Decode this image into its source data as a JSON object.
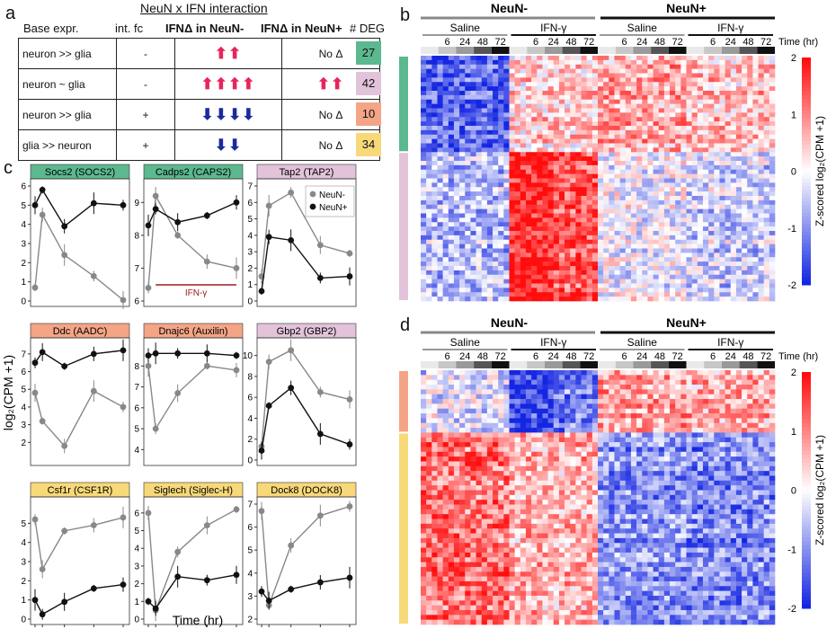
{
  "panels": {
    "a": "a",
    "b": "b",
    "c": "c",
    "d": "d"
  },
  "table": {
    "title": "NeuN x IFN interaction",
    "headers": [
      "Base expr.",
      "int. fc",
      "IFNΔ in NeuN-",
      "IFNΔ in NeuN+",
      "# DEG"
    ],
    "rows": [
      {
        "base": "neuron >> glia",
        "fc": "-",
        "neg_dir": "up",
        "neg_n": 2,
        "pos": "No Δ",
        "pos_dir": "",
        "pos_n": 0,
        "deg": "27",
        "color": "#5cb88f"
      },
      {
        "base": "neuron ~ glia",
        "fc": "-",
        "neg_dir": "up",
        "neg_n": 4,
        "pos": "",
        "pos_dir": "up",
        "pos_n": 2,
        "deg": "42",
        "color": "#e2c3da"
      },
      {
        "base": "neuron >> glia",
        "fc": "+",
        "neg_dir": "down",
        "neg_n": 4,
        "pos": "No Δ",
        "pos_dir": "",
        "pos_n": 0,
        "deg": "10",
        "color": "#f4a586"
      },
      {
        "base": "glia >> neuron",
        "fc": "+",
        "neg_dir": "down",
        "neg_n": 2,
        "pos": "No Δ",
        "pos_dir": "",
        "pos_n": 0,
        "deg": "34",
        "color": "#f7d97a"
      }
    ]
  },
  "heatmap_labels": {
    "neg": "NeuN-",
    "pos": "NeuN+",
    "saline": "Saline",
    "ifn": "IFN-γ",
    "time_ticks": [
      "6",
      "24",
      "48",
      "72"
    ],
    "time_unit": "Time (hr)",
    "cbar_label": "Z-scored log₂(CPM +1)",
    "cbar_ticks": [
      "2",
      "1",
      "0",
      "-1",
      "-2"
    ]
  },
  "c_labels": {
    "ylabel": "log₂(CPM +1)",
    "xlabel": "Time (hr)",
    "legend": [
      "NeuN-",
      "NeuN+"
    ],
    "ifn_bar": "IFN-γ",
    "xticks": [
      "0",
      "6",
      "24",
      "48",
      "72"
    ]
  },
  "colors": {
    "teal": "#5cb88f",
    "pink": "#e2c3da",
    "salmon": "#f4a586",
    "yellow": "#f7d97a",
    "neg": "#888888",
    "pos": "#111111",
    "ifn": "#a11c1c"
  },
  "chart_data": [
    {
      "type": "line",
      "title": "Socs2 (SOCS2)",
      "x": [
        0,
        6,
        24,
        48,
        72
      ],
      "ylim": [
        0,
        6
      ],
      "yticks": [
        0,
        1,
        2,
        3,
        4,
        5,
        6
      ],
      "series": [
        {
          "name": "NeuN-",
          "values": [
            0.7,
            4.5,
            2.4,
            1.3,
            0.05
          ]
        },
        {
          "name": "NeuN+",
          "values": [
            5.0,
            5.8,
            3.9,
            5.1,
            5.0
          ]
        }
      ],
      "headerColor": "teal"
    },
    {
      "type": "line",
      "title": "Cadps2 (CAPS2)",
      "x": [
        0,
        6,
        24,
        48,
        72
      ],
      "ylim": [
        6,
        9.5
      ],
      "yticks": [
        6,
        7,
        8,
        9
      ],
      "series": [
        {
          "name": "NeuN-",
          "values": [
            6.4,
            9.2,
            8.0,
            7.2,
            7.0
          ]
        },
        {
          "name": "NeuN+",
          "values": [
            8.3,
            8.8,
            8.4,
            8.6,
            9.0
          ]
        }
      ],
      "headerColor": "teal",
      "ifnbar": true
    },
    {
      "type": "line",
      "title": "Tap2 (TAP2)",
      "x": [
        0,
        6,
        24,
        48,
        72
      ],
      "ylim": [
        0,
        7
      ],
      "yticks": [
        0,
        1,
        2,
        3,
        4,
        5,
        6,
        7
      ],
      "series": [
        {
          "name": "NeuN-",
          "values": [
            1.5,
            5.8,
            6.6,
            3.4,
            2.9
          ]
        },
        {
          "name": "NeuN+",
          "values": [
            0.6,
            3.9,
            3.7,
            1.4,
            1.5
          ]
        }
      ],
      "headerColor": "pink",
      "legend": true
    },
    {
      "type": "line",
      "title": "Ddc (AADC)",
      "x": [
        0,
        6,
        24,
        48,
        72
      ],
      "ylim": [
        1,
        7.5
      ],
      "yticks": [
        2,
        3,
        4,
        5,
        6,
        7
      ],
      "series": [
        {
          "name": "NeuN-",
          "values": [
            4.8,
            3.2,
            1.8,
            4.9,
            4.0
          ]
        },
        {
          "name": "NeuN+",
          "values": [
            6.5,
            7.1,
            6.3,
            7.0,
            7.2
          ]
        }
      ],
      "headerColor": "salmon"
    },
    {
      "type": "line",
      "title": "Dnajc6 (Auxilin)",
      "x": [
        0,
        6,
        24,
        48,
        72
      ],
      "ylim": [
        3.5,
        9
      ],
      "yticks": [
        4,
        5,
        6,
        7,
        8
      ],
      "series": [
        {
          "name": "NeuN-",
          "values": [
            8.0,
            5.0,
            6.7,
            8.0,
            7.8
          ]
        },
        {
          "name": "NeuN+",
          "values": [
            8.5,
            8.6,
            8.6,
            8.6,
            8.5
          ]
        }
      ],
      "headerColor": "salmon"
    },
    {
      "type": "line",
      "title": "Gbp2 (GBP2)",
      "x": [
        0,
        6,
        24,
        48,
        72
      ],
      "ylim": [
        0,
        11
      ],
      "yticks": [
        0,
        2,
        4,
        6,
        8,
        10
      ],
      "series": [
        {
          "name": "NeuN-",
          "values": [
            1.3,
            9.4,
            10.5,
            6.5,
            5.8
          ]
        },
        {
          "name": "NeuN+",
          "values": [
            0.9,
            5.2,
            6.9,
            2.5,
            1.5
          ]
        }
      ],
      "headerColor": "pink"
    },
    {
      "type": "line",
      "title": "Csf1r (CSF1R)",
      "x": [
        0,
        6,
        24,
        48,
        72
      ],
      "ylim": [
        0,
        6
      ],
      "yticks": [
        0,
        1,
        2,
        3,
        4,
        5
      ],
      "series": [
        {
          "name": "NeuN-",
          "values": [
            5.2,
            2.6,
            4.6,
            4.9,
            5.3
          ]
        },
        {
          "name": "NeuN+",
          "values": [
            1.0,
            0.25,
            0.9,
            1.6,
            1.8
          ]
        }
      ],
      "headerColor": "yellow"
    },
    {
      "type": "line",
      "title": "Siglech (Siglec-H)",
      "x": [
        0,
        6,
        24,
        48,
        72
      ],
      "ylim": [
        0,
        6.5
      ],
      "yticks": [
        0,
        1,
        2,
        3,
        4,
        5,
        6
      ],
      "series": [
        {
          "name": "NeuN-",
          "values": [
            6.0,
            0.5,
            3.8,
            5.3,
            6.2
          ]
        },
        {
          "name": "NeuN+",
          "values": [
            1.0,
            0.6,
            2.4,
            2.2,
            2.5
          ]
        }
      ],
      "headerColor": "yellow"
    },
    {
      "type": "line",
      "title": "Dock8 (DOCK8)",
      "x": [
        0,
        6,
        24,
        48,
        72
      ],
      "ylim": [
        2,
        7
      ],
      "yticks": [
        2,
        3,
        4,
        5,
        6,
        7
      ],
      "series": [
        {
          "name": "NeuN-",
          "values": [
            6.7,
            2.6,
            5.2,
            6.5,
            6.9
          ]
        },
        {
          "name": "NeuN+",
          "values": [
            3.2,
            2.8,
            3.3,
            3.6,
            3.8
          ]
        }
      ],
      "headerColor": "yellow"
    }
  ]
}
